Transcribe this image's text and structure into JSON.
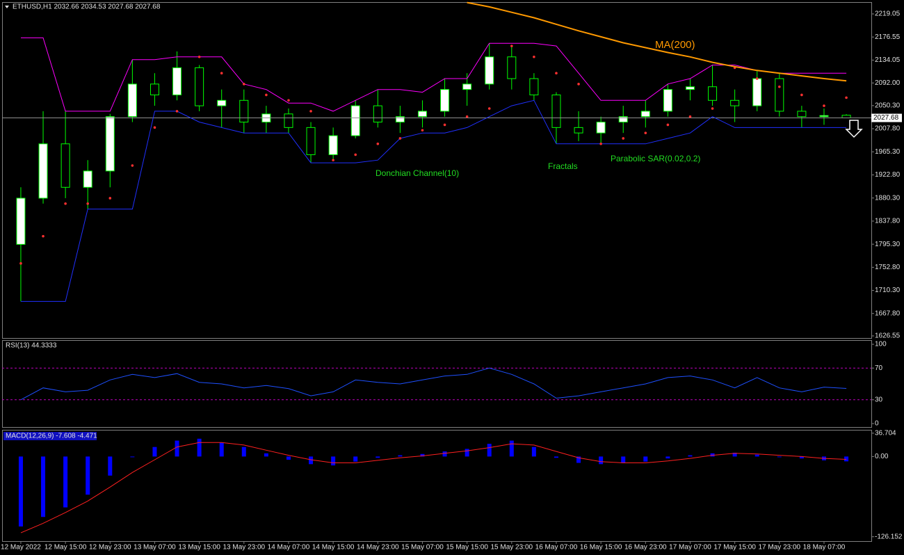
{
  "chart_data": [
    {
      "type": "candlestick",
      "title": "ETHUSD,H1  2032.66 2034.53 2027.68 2027.68",
      "xlim": [
        -0.84,
        38.12
      ],
      "ylim": [
        1622.7,
        2240.8
      ],
      "yticks": [
        {
          "value": 2219.05,
          "label": "2219.05"
        },
        {
          "value": 2176.55,
          "label": "2176.55"
        },
        {
          "value": 2134.05,
          "label": "2134.05"
        },
        {
          "value": 2092,
          "label": "2092.00"
        },
        {
          "value": 2050.3,
          "label": "2050.30"
        },
        {
          "value": 2007.8,
          "label": "2007.80"
        },
        {
          "value": 1965.3,
          "label": "1965.30"
        },
        {
          "value": 1922.8,
          "label": "1922.80"
        },
        {
          "value": 1880.3,
          "label": "1880.30"
        },
        {
          "value": 1837.8,
          "label": "1837.80"
        },
        {
          "value": 1795.3,
          "label": "1795.30"
        },
        {
          "value": 1752.8,
          "label": "1752.80"
        },
        {
          "value": 1710.3,
          "label": "1710.30"
        },
        {
          "value": 1667.8,
          "label": "1667.80"
        },
        {
          "value": 1626.55,
          "label": "1626.55"
        }
      ],
      "last_price": 2027.68,
      "bull_color": "#ffffff",
      "bear_color": "#000000",
      "wick_color": "#00ff00",
      "open": [
        1795,
        1880,
        1980,
        1900,
        1930,
        2030,
        2090,
        2070,
        2120,
        2050,
        2060,
        2020,
        2035,
        2010,
        1960,
        1995,
        2050,
        2020,
        2030,
        2040,
        2080,
        2090,
        2140,
        2100,
        2070,
        2010,
        2000,
        2020,
        2030,
        2040,
        2080,
        2085,
        2060,
        2050,
        2100,
        2040,
        2030,
        2032.66
      ],
      "high": [
        1900,
        2040,
        2040,
        1950,
        2035,
        2135,
        2110,
        2150,
        2125,
        2080,
        2080,
        2050,
        2045,
        2020,
        2010,
        2060,
        2080,
        2050,
        2060,
        2100,
        2110,
        2165,
        2160,
        2110,
        2075,
        2040,
        2030,
        2050,
        2060,
        2090,
        2100,
        2125,
        2080,
        2115,
        2110,
        2050,
        2045,
        2034.53
      ],
      "low": [
        1690,
        1870,
        1880,
        1860,
        1900,
        2020,
        2050,
        2060,
        2040,
        2010,
        2000,
        2000,
        2000,
        1945,
        1950,
        1990,
        2010,
        2000,
        2010,
        2030,
        2050,
        2080,
        2080,
        2060,
        1980,
        1985,
        1980,
        2000,
        2010,
        2030,
        2060,
        2050,
        2020,
        2040,
        2030,
        2010,
        2015,
        2027.68
      ],
      "close": [
        1880,
        1980,
        1900,
        1930,
        2030,
        2090,
        2070,
        2120,
        2050,
        2060,
        2020,
        2035,
        2010,
        1960,
        1995,
        2050,
        2020,
        2030,
        2040,
        2080,
        2090,
        2140,
        2100,
        2070,
        2010,
        2000,
        2020,
        2030,
        2040,
        2080,
        2085,
        2060,
        2050,
        2100,
        2040,
        2030,
        2032,
        2027.68
      ],
      "series": [
        {
          "style": "line",
          "color": "#ff00ff",
          "values": [
            2175,
            2175,
            2040,
            2040,
            2040,
            2135,
            2135,
            2140,
            2140,
            2140,
            2090,
            2080,
            2055,
            2055,
            2040,
            2060,
            2080,
            2080,
            2075,
            2100,
            2100,
            2165,
            2165,
            2165,
            2160,
            2110,
            2060,
            2060,
            2060,
            2090,
            2100,
            2125,
            2125,
            2115,
            2110,
            2110,
            2110,
            2110
          ]
        },
        {
          "style": "line",
          "color": "#2030ff",
          "values": [
            1690,
            1690,
            1690,
            1860,
            1860,
            1860,
            2040,
            2040,
            2020,
            2010,
            2000,
            2000,
            2000,
            1945,
            1945,
            1945,
            1950,
            1990,
            2000,
            2000,
            2010,
            2030,
            2050,
            2060,
            1980,
            1980,
            1980,
            1980,
            1980,
            1990,
            2000,
            2030,
            2010,
            2010,
            2010,
            2010,
            2010,
            2010
          ]
        },
        {
          "style": "dots",
          "color": "#ff3030",
          "values": [
            1760,
            1810,
            1870,
            1870,
            1880,
            1940,
            2010,
            2040,
            2140,
            2110,
            2090,
            2070,
            2060,
            2040,
            1950,
            1960,
            1980,
            1990,
            2005,
            2015,
            2030,
            2045,
            2160,
            2140,
            2110,
            2090,
            1980,
            1990,
            2000,
            2015,
            2030,
            2045,
            2120,
            2100,
            2085,
            2070,
            2050,
            2065
          ]
        },
        {
          "style": "line",
          "color": "#ff9900",
          "values": [
            null,
            null,
            null,
            null,
            null,
            null,
            null,
            null,
            null,
            null,
            null,
            null,
            null,
            null,
            null,
            null,
            null,
            null,
            null,
            null,
            2240,
            2232,
            2222,
            2212,
            2200,
            2188,
            2177,
            2166,
            2157,
            2148,
            2140,
            2130,
            2122,
            2115,
            2110,
            2105,
            2100,
            2096
          ]
        }
      ],
      "annotations": [
        {
          "text": "MA(200)",
          "color": "#ff9900"
        },
        {
          "text": "Donchian Channel(10)",
          "color": "#22dd22"
        },
        {
          "text": "Fractals",
          "color": "#22dd22"
        },
        {
          "text": "Parabolic SAR(0.02,0.2)",
          "color": "#22dd22"
        }
      ]
    },
    {
      "type": "line",
      "title": "RSI(13) 44.3333",
      "xlim": [
        -0.84,
        38.12
      ],
      "ylim": [
        -4.4,
        105.3
      ],
      "yticks": [
        100,
        70,
        30,
        0
      ],
      "levels": [
        70,
        30
      ],
      "level_color": "#c000c0",
      "series": [
        {
          "style": "line",
          "color": "#1e50ff",
          "values": [
            30,
            45,
            40,
            42,
            55,
            62,
            58,
            63,
            52,
            50,
            45,
            48,
            44,
            35,
            40,
            55,
            52,
            50,
            55,
            60,
            62,
            70,
            62,
            50,
            32,
            35,
            40,
            45,
            50,
            58,
            60,
            55,
            45,
            58,
            45,
            40,
            46,
            44.3333
          ]
        }
      ]
    },
    {
      "type": "bar",
      "title": "MACD(12,26,9) -7.608 -4.471",
      "xlim": [
        -0.84,
        38.12
      ],
      "ylim": [
        -133,
        42
      ],
      "yticks": [
        36.704,
        {
          "value": 0,
          "label": "0.00"
        },
        -126.152
      ],
      "color": "#0000ff",
      "values": [
        -110,
        -95,
        -80,
        -60,
        -30,
        0,
        15,
        25,
        28,
        22,
        15,
        5,
        -5,
        -12,
        -14,
        -8,
        -2,
        2,
        4,
        8,
        12,
        20,
        25,
        15,
        -2,
        -10,
        -12,
        -10,
        -8,
        -3,
        2,
        5,
        6,
        3,
        0,
        -3,
        -6,
        -7.608
      ],
      "series": [
        {
          "style": "line",
          "color": "#ff2020",
          "values": [
            -120,
            -105,
            -88,
            -70,
            -48,
            -25,
            -5,
            15,
            22,
            22,
            18,
            10,
            2,
            -5,
            -10,
            -10,
            -6,
            -2,
            1,
            5,
            9,
            14,
            20,
            18,
            8,
            -2,
            -8,
            -10,
            -10,
            -7,
            -3,
            2,
            5,
            4,
            2,
            0,
            -3,
            -4.471
          ]
        }
      ],
      "xticks": [
        {
          "value": 0,
          "label": "12 May 2022"
        },
        {
          "value": 2,
          "label": "12 May 15:00"
        },
        {
          "value": 4,
          "label": "12 May 23:00"
        },
        {
          "value": 6,
          "label": "13 May 07:00"
        },
        {
          "value": 8,
          "label": "13 May 15:00"
        },
        {
          "value": 10,
          "label": "13 May 23:00"
        },
        {
          "value": 12,
          "label": "14 May 07:00"
        },
        {
          "value": 14,
          "label": "14 May 15:00"
        },
        {
          "value": 16,
          "label": "14 May 23:00"
        },
        {
          "value": 18,
          "label": "15 May 07:00"
        },
        {
          "value": 20,
          "label": "15 May 15:00"
        },
        {
          "value": 22,
          "label": "15 May 23:00"
        },
        {
          "value": 24,
          "label": "16 May 07:00"
        },
        {
          "value": 26,
          "label": "16 May 15:00"
        },
        {
          "value": 28,
          "label": "16 May 23:00"
        },
        {
          "value": 30,
          "label": "17 May 07:00"
        },
        {
          "value": 32,
          "label": "17 May 15:00"
        },
        {
          "value": 34,
          "label": "17 May 23:00"
        },
        {
          "value": 36,
          "label": "18 May 07:00"
        }
      ]
    }
  ]
}
